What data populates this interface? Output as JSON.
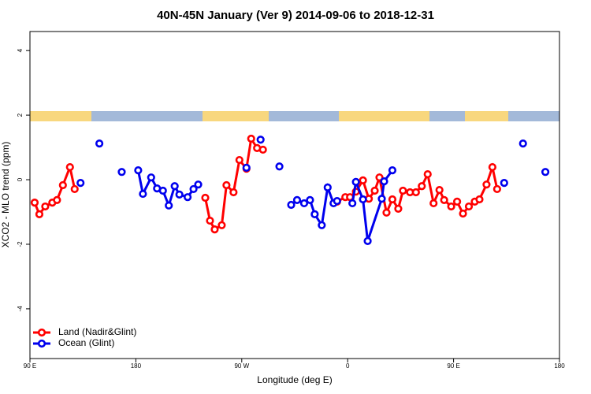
{
  "chart_data": {
    "type": "line",
    "title": "40N-45N January (Ver 9)   2014-09-06 to 2018-12-31",
    "x_label": "Longitude (deg E)",
    "y_label": "XCO2 - MLO trend (ppm)",
    "xlim": [
      90,
      540
    ],
    "xticks": [
      {
        "value": 90,
        "label": "90 E"
      },
      180,
      {
        "value": 270,
        "label": "90 W"
      },
      {
        "value": 360,
        "label": "0"
      },
      {
        "value": 450,
        "label": "90 E"
      },
      {
        "value": 540,
        "label": "180"
      }
    ],
    "ylim": [
      -5.54,
      4.59
    ],
    "yticks": [
      -4,
      -2,
      0,
      2,
      4
    ],
    "legend": "bottom-left",
    "series": [
      {
        "name": "Land (Nadir&Glint)",
        "color": "#ff0000",
        "x": [
          94,
          98,
          103,
          109,
          113,
          118,
          124,
          128,
          null,
          239,
          243,
          247,
          253,
          257,
          263,
          268,
          274,
          278,
          283,
          288,
          null,
          351,
          358,
          362,
          367,
          373,
          378,
          383,
          387,
          393,
          398,
          403,
          407,
          413,
          418,
          423,
          428,
          433,
          438,
          442,
          448,
          453,
          458,
          463,
          468,
          472,
          478,
          483,
          487
        ],
        "values": [
          -0.71,
          -1.07,
          -0.83,
          -0.71,
          -0.63,
          -0.17,
          0.39,
          -0.29,
          null,
          -0.56,
          -1.27,
          -1.54,
          -1.41,
          -0.17,
          -0.39,
          0.61,
          0.34,
          1.27,
          0.98,
          0.93,
          null,
          -0.68,
          -0.54,
          -0.54,
          -0.37,
          -0.02,
          -0.59,
          -0.34,
          0.07,
          -1.02,
          -0.61,
          -0.9,
          -0.34,
          -0.39,
          -0.39,
          -0.2,
          0.17,
          -0.73,
          -0.32,
          -0.63,
          -0.83,
          -0.68,
          -1.05,
          -0.83,
          -0.68,
          -0.61,
          -0.15,
          0.39,
          -0.29
        ]
      },
      {
        "name": "Ocean (Glint)",
        "color": "#0000ee",
        "x": [
          133,
          null,
          149,
          null,
          168,
          null,
          182,
          186,
          193,
          198,
          203,
          208,
          213,
          217,
          224,
          229,
          233,
          null,
          274,
          null,
          286,
          null,
          302,
          null,
          312,
          317,
          323,
          328,
          332,
          338,
          343,
          348,
          351,
          null,
          364,
          367,
          373,
          377,
          389,
          391,
          398,
          null,
          493,
          null,
          509,
          null,
          528
        ],
        "values": [
          -0.1,
          null,
          1.12,
          null,
          0.24,
          null,
          0.29,
          -0.44,
          0.07,
          -0.27,
          -0.34,
          -0.8,
          -0.2,
          -0.46,
          -0.54,
          -0.29,
          -0.15,
          null,
          0.37,
          null,
          1.24,
          null,
          0.41,
          null,
          -0.78,
          -0.63,
          -0.73,
          -0.63,
          -1.07,
          -1.41,
          -0.24,
          -0.73,
          -0.66,
          null,
          -0.73,
          -0.07,
          -0.61,
          -1.9,
          -0.59,
          -0.05,
          0.29,
          null,
          -0.1,
          null,
          1.12,
          null,
          0.24
        ]
      }
    ]
  }
}
